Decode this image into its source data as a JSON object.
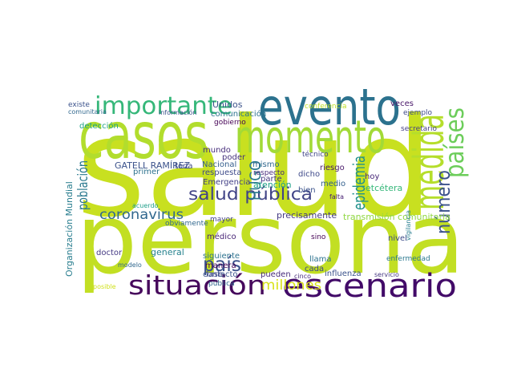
{
  "chart_data": {
    "type": "wordcloud",
    "words": [
      "salud",
      "persona",
      "casos",
      "evento",
      "momento",
      "importante",
      "medida",
      "países",
      "situación",
      "escenario",
      "salud pública",
      "número",
      "coronavirus",
      "país",
      "millones",
      "población",
      "epidemia",
      "HUGO",
      "Organización Mundial",
      "GATELL RAMÍREZ",
      "precisamente",
      "transmisión comunitaria",
      "etcétera",
      "conferencia",
      "Unidos",
      "comunicación",
      "gobierno",
      "detección",
      "comunitaria",
      "información",
      "mundo",
      "poder",
      "Nacional",
      "respuesta",
      "Emergencia",
      "mismo",
      "respecto",
      "dicho",
      "riesgo",
      "hoy",
      "medio",
      "bien",
      "atención",
      "parte",
      "técnico",
      "veces",
      "ejemplo",
      "secretario",
      "siguiente",
      "manera",
      "fase",
      "pública",
      "médico",
      "mayor",
      "general",
      "doctor",
      "primer",
      "toda",
      "acuerdo",
      "contacto",
      "cada",
      "pueden",
      "influenza",
      "llama",
      "nivel",
      "enfermedad",
      "sino",
      "modelo",
      "obviamente",
      "falta",
      "vigilancia",
      "servicio",
      "cinco",
      "posible",
      "existe"
    ]
  }
}
